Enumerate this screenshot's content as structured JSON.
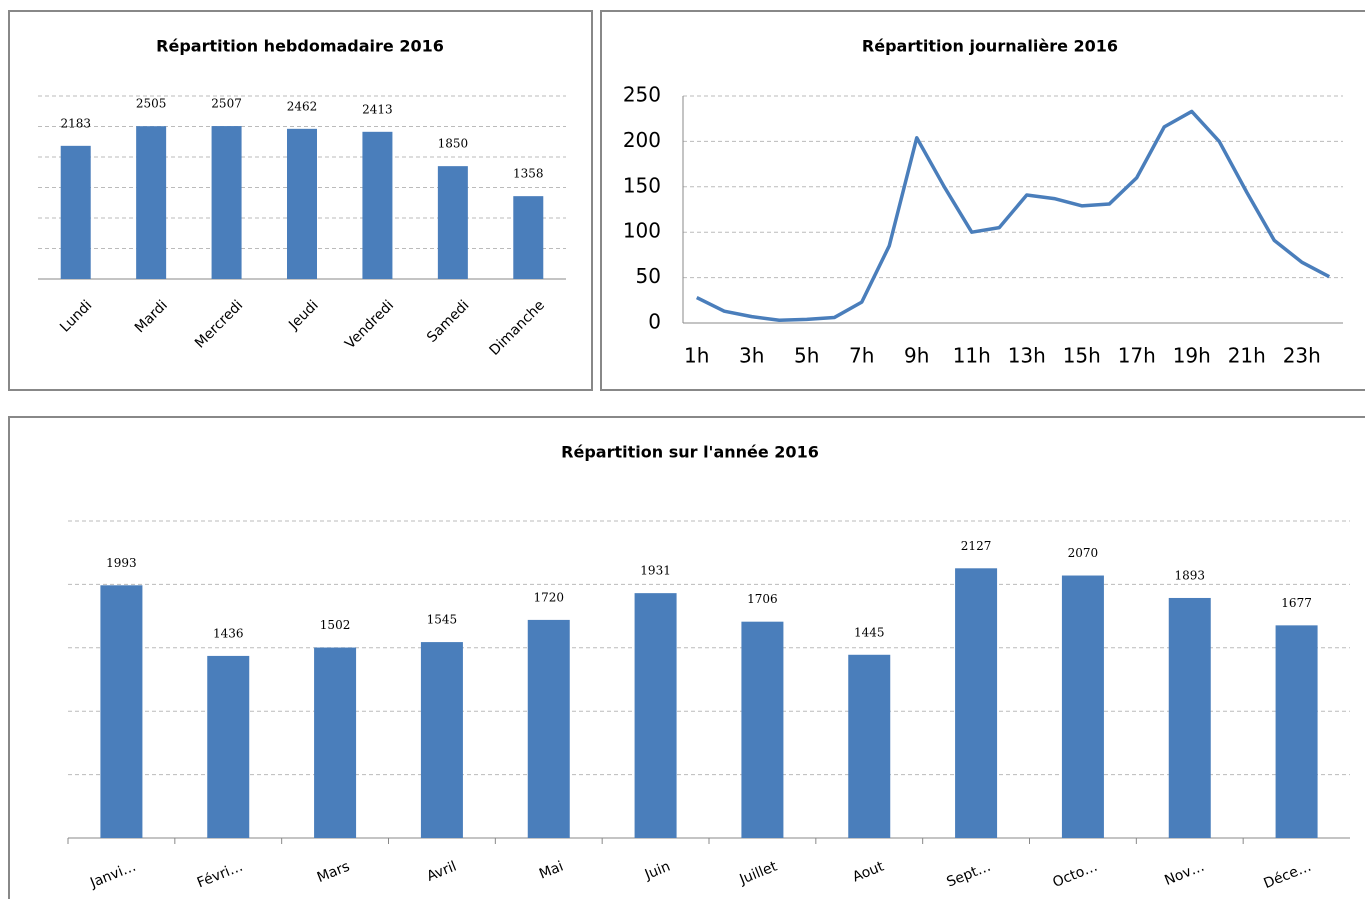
{
  "chart_data": [
    {
      "type": "bar",
      "title": "Répartition hebdomadaire 2016",
      "categories": [
        "Lundi",
        "Mardi",
        "Mercredi",
        "Jeudi",
        "Vendredi",
        "Samedi",
        "Dimanche"
      ],
      "values": [
        2183,
        2505,
        2507,
        2462,
        2413,
        1850,
        1358
      ],
      "color": "#4a7ebb",
      "ylim": [
        0,
        3000
      ],
      "yticks": [
        0,
        500,
        1000,
        1500,
        2000,
        2500,
        3000
      ],
      "grid": true
    },
    {
      "type": "line",
      "title": "Répartition journalière 2016",
      "categories": [
        "1h",
        null,
        "3h",
        null,
        "5h",
        null,
        "7h",
        null,
        "9h",
        null,
        "11h",
        null,
        "13h",
        null,
        "15h",
        null,
        "17h",
        null,
        "19h",
        null,
        "21h",
        null,
        "23h",
        null
      ],
      "values": [
        28,
        13,
        7,
        3,
        4,
        6,
        23,
        85,
        204,
        150,
        100,
        105,
        141,
        137,
        129,
        131,
        160,
        216,
        233,
        200,
        144,
        91,
        67,
        51
      ],
      "color": "#4a7ebb",
      "ylim": [
        0,
        250
      ],
      "yticks": [
        0,
        50,
        100,
        150,
        200,
        250
      ],
      "grid": true
    },
    {
      "type": "bar",
      "title": "Répartition sur l'année 2016",
      "categories": [
        "Janvi…",
        "Févri…",
        "Mars",
        "Avril",
        "Mai",
        "Juin",
        "Juillet",
        "Aout",
        "Sept…",
        "Octo…",
        "Nov…",
        "Déce…"
      ],
      "values": [
        1993,
        1436,
        1502,
        1545,
        1720,
        1931,
        1706,
        1445,
        2127,
        2070,
        1893,
        1677
      ],
      "color": "#4a7ebb",
      "ylim": [
        0,
        2500
      ],
      "yticks": [
        0,
        500,
        1000,
        1500,
        2000,
        2500
      ],
      "grid": true
    }
  ]
}
